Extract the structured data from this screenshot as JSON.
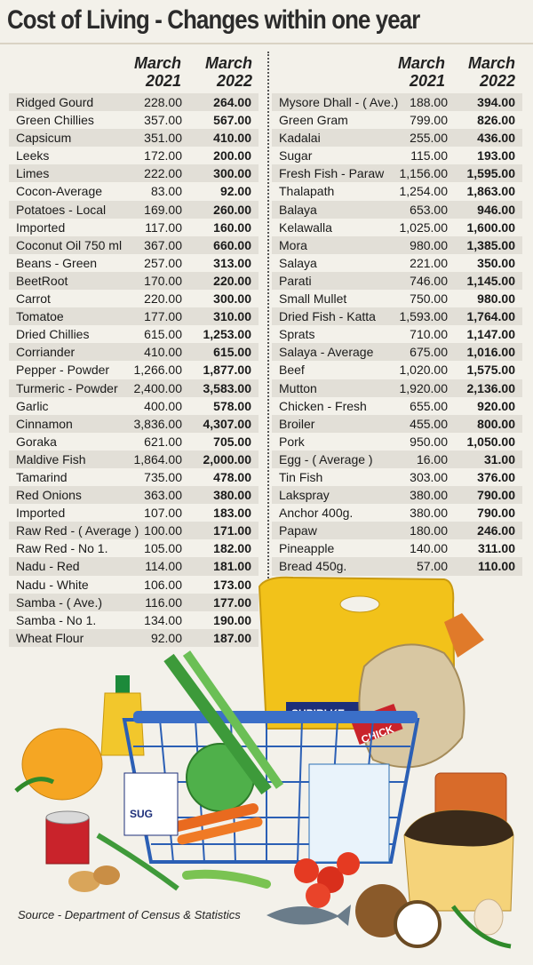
{
  "title": "Cost of Living - Changes within one year",
  "headers": {
    "col1_month": "March",
    "col1_year": "2021",
    "col2_month": "March",
    "col2_year": "2022"
  },
  "left_rows": [
    [
      "Ridged Gourd",
      "228.00",
      "264.00"
    ],
    [
      "Green Chillies",
      "357.00",
      "567.00"
    ],
    [
      "Capsicum",
      "351.00",
      "410.00"
    ],
    [
      "Leeks",
      "172.00",
      "200.00"
    ],
    [
      "Limes",
      "222.00",
      "300.00"
    ],
    [
      "Cocon-Average",
      "83.00",
      "92.00"
    ],
    [
      "Potatoes - Local",
      "169.00",
      "260.00"
    ],
    [
      "Imported",
      "117.00",
      "160.00"
    ],
    [
      "Coconut Oil 750 ml",
      "367.00",
      "660.00"
    ],
    [
      "Beans - Green",
      "257.00",
      "313.00"
    ],
    [
      "BeetRoot",
      "170.00",
      "220.00"
    ],
    [
      "Carrot",
      "220.00",
      "300.00"
    ],
    [
      "Tomatoe",
      "177.00",
      "310.00"
    ],
    [
      "Dried Chillies",
      "615.00",
      "1,253.00"
    ],
    [
      "Corriander",
      "410.00",
      "615.00"
    ],
    [
      "Pepper - Powder",
      "1,266.00",
      "1,877.00"
    ],
    [
      "Turmeric - Powder",
      "2,400.00",
      "3,583.00"
    ],
    [
      "Garlic",
      "400.00",
      "578.00"
    ],
    [
      "Cinnamon",
      "3,836.00",
      "4,307.00"
    ],
    [
      "Goraka",
      "621.00",
      "705.00"
    ],
    [
      "Maldive Fish",
      "1,864.00",
      "2,000.00"
    ],
    [
      "Tamarind",
      "735.00",
      "478.00"
    ],
    [
      "Red Onions",
      "363.00",
      "380.00"
    ],
    [
      "Imported",
      "107.00",
      "183.00"
    ],
    [
      "Raw Red - ( Average )",
      "100.00",
      "171.00"
    ],
    [
      "Raw Red - No 1.",
      "105.00",
      "182.00"
    ],
    [
      "Nadu - Red",
      "114.00",
      "181.00"
    ],
    [
      "Nadu - White",
      "106.00",
      "173.00"
    ],
    [
      "Samba - ( Ave.)",
      "116.00",
      "177.00"
    ],
    [
      "Samba - No 1.",
      "134.00",
      "190.00"
    ],
    [
      "Wheat Flour",
      "92.00",
      "187.00"
    ]
  ],
  "right_rows": [
    [
      "Mysore Dhall - ( Ave.)",
      "188.00",
      "394.00"
    ],
    [
      "Green Gram",
      "799.00",
      "826.00"
    ],
    [
      "Kadalai",
      "255.00",
      "436.00"
    ],
    [
      "Sugar",
      "115.00",
      "193.00"
    ],
    [
      "Fresh Fish - Paraw",
      "1,156.00",
      "1,595.00"
    ],
    [
      "Thalapath",
      "1,254.00",
      "1,863.00"
    ],
    [
      "Balaya",
      "653.00",
      "946.00"
    ],
    [
      "Kelawalla",
      "1,025.00",
      "1,600.00"
    ],
    [
      "Mora",
      "980.00",
      "1,385.00"
    ],
    [
      "Salaya",
      "221.00",
      "350.00"
    ],
    [
      "Parati",
      "746.00",
      "1,145.00"
    ],
    [
      "Small Mullet",
      "750.00",
      "980.00"
    ],
    [
      "Dried Fish - Katta",
      "1,593.00",
      "1,764.00"
    ],
    [
      "Sprats",
      "710.00",
      "1,147.00"
    ],
    [
      "Salaya - Average",
      "675.00",
      "1,016.00"
    ],
    [
      "Beef",
      "1,020.00",
      "1,575.00"
    ],
    [
      "Mutton",
      "1,920.00",
      "2,136.00"
    ],
    [
      "Chicken - Fresh",
      "655.00",
      "920.00"
    ],
    [
      "Broiler",
      "455.00",
      "800.00"
    ],
    [
      "Pork",
      "950.00",
      "1,050.00"
    ],
    [
      "Egg - ( Average )",
      "16.00",
      "31.00"
    ],
    [
      "Tin Fish",
      "303.00",
      "376.00"
    ],
    [
      "Lakspray",
      "380.00",
      "790.00"
    ],
    [
      "Anchor 400g.",
      "380.00",
      "790.00"
    ],
    [
      "Papaw",
      "180.00",
      "246.00"
    ],
    [
      "Pineapple",
      "140.00",
      "311.00"
    ],
    [
      "Bread 450g.",
      "57.00",
      "110.00"
    ]
  ],
  "illustration": {
    "rice_bag_text": "SUPIRI KE",
    "chicken_label": "CHICK",
    "sugar_pack": "SUG"
  },
  "source": "Source - Department of Census & Statistics",
  "colors": {
    "background": "#f3f1ea",
    "row_shade": "#e2dfd7",
    "title": "#2b2b2b"
  }
}
